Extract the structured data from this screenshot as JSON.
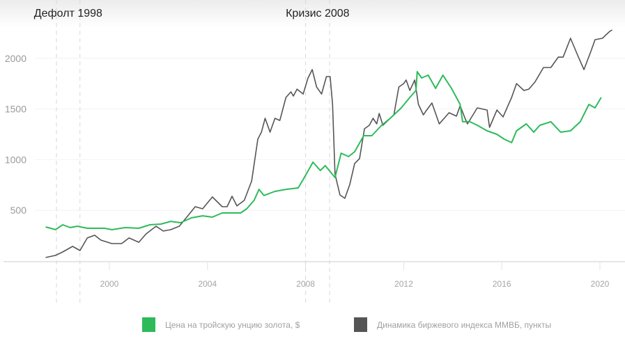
{
  "chart_data": {
    "type": "line",
    "xlim": [
      1997.3,
      2020.6
    ],
    "ylim": [
      0,
      2300
    ],
    "grid": true,
    "y_ticks": [
      500,
      1000,
      1500,
      2000
    ],
    "x_ticks": [
      2000,
      2004,
      2008,
      2012,
      2016,
      2020
    ],
    "legend_position": "bottom",
    "annotations": [
      {
        "label": "Дефолт 1998",
        "lines": [
          1997.84,
          1998.8
        ]
      },
      {
        "label": "Кризис 2008",
        "lines": [
          2008.0,
          2008.98
        ]
      }
    ],
    "series": [
      {
        "name": "Цена на тройскую унцию золота, $",
        "color": "#2dbb5a",
        "points": [
          [
            1997.4,
            336
          ],
          [
            1997.8,
            310
          ],
          [
            1998.1,
            357
          ],
          [
            1998.4,
            330
          ],
          [
            1998.7,
            343
          ],
          [
            1999.1,
            323
          ],
          [
            1999.8,
            323
          ],
          [
            2000.1,
            309
          ],
          [
            2000.65,
            330
          ],
          [
            2001.2,
            323
          ],
          [
            2001.65,
            357
          ],
          [
            2002.1,
            364
          ],
          [
            2002.5,
            391
          ],
          [
            2002.9,
            378
          ],
          [
            2003.35,
            426
          ],
          [
            2003.8,
            446
          ],
          [
            2004.2,
            433
          ],
          [
            2004.6,
            474
          ],
          [
            2005.35,
            474
          ],
          [
            2005.6,
            515
          ],
          [
            2005.9,
            598
          ],
          [
            2006.1,
            707
          ],
          [
            2006.3,
            646
          ],
          [
            2006.75,
            687
          ],
          [
            2007.2,
            707
          ],
          [
            2007.7,
            721
          ],
          [
            2007.95,
            824
          ],
          [
            2008.3,
            975
          ],
          [
            2008.6,
            893
          ],
          [
            2008.8,
            941
          ],
          [
            2009.2,
            824
          ],
          [
            2009.45,
            1064
          ],
          [
            2009.75,
            1030
          ],
          [
            2010.0,
            1078
          ],
          [
            2010.37,
            1236
          ],
          [
            2010.7,
            1236
          ],
          [
            2011.1,
            1339
          ],
          [
            2011.45,
            1408
          ],
          [
            2011.9,
            1511
          ],
          [
            2012.25,
            1614
          ],
          [
            2012.5,
            1683
          ],
          [
            2012.55,
            1868
          ],
          [
            2012.73,
            1806
          ],
          [
            2013.0,
            1834
          ],
          [
            2013.3,
            1703
          ],
          [
            2013.6,
            1834
          ],
          [
            2013.95,
            1703
          ],
          [
            2014.3,
            1545
          ],
          [
            2014.4,
            1374
          ],
          [
            2014.7,
            1374
          ],
          [
            2015.0,
            1339
          ],
          [
            2015.4,
            1284
          ],
          [
            2015.8,
            1250
          ],
          [
            2016.1,
            1202
          ],
          [
            2016.4,
            1168
          ],
          [
            2016.6,
            1284
          ],
          [
            2017.0,
            1353
          ],
          [
            2017.3,
            1271
          ],
          [
            2017.55,
            1339
          ],
          [
            2018.0,
            1374
          ],
          [
            2018.4,
            1271
          ],
          [
            2018.8,
            1284
          ],
          [
            2019.2,
            1374
          ],
          [
            2019.55,
            1545
          ],
          [
            2019.8,
            1511
          ],
          [
            2020.05,
            1614
          ]
        ]
      },
      {
        "name": "Динамика биржевого индекса ММВБ, пункты",
        "color": "#555555",
        "points": [
          [
            1997.4,
            34
          ],
          [
            1997.8,
            55
          ],
          [
            1998.1,
            89
          ],
          [
            1998.5,
            144
          ],
          [
            1998.8,
            103
          ],
          [
            1999.1,
            227
          ],
          [
            1999.4,
            254
          ],
          [
            1999.65,
            206
          ],
          [
            2000.1,
            172
          ],
          [
            2000.5,
            172
          ],
          [
            2000.8,
            227
          ],
          [
            2001.2,
            185
          ],
          [
            2001.5,
            268
          ],
          [
            2001.9,
            343
          ],
          [
            2002.2,
            295
          ],
          [
            2002.5,
            309
          ],
          [
            2002.85,
            343
          ],
          [
            2003.2,
            446
          ],
          [
            2003.5,
            536
          ],
          [
            2003.8,
            515
          ],
          [
            2004.2,
            632
          ],
          [
            2004.6,
            536
          ],
          [
            2004.8,
            536
          ],
          [
            2005.0,
            639
          ],
          [
            2005.2,
            543
          ],
          [
            2005.5,
            598
          ],
          [
            2005.8,
            790
          ],
          [
            2006.05,
            1202
          ],
          [
            2006.2,
            1271
          ],
          [
            2006.35,
            1408
          ],
          [
            2006.55,
            1271
          ],
          [
            2006.75,
            1408
          ],
          [
            2006.95,
            1387
          ],
          [
            2007.2,
            1614
          ],
          [
            2007.4,
            1669
          ],
          [
            2007.5,
            1628
          ],
          [
            2007.65,
            1696
          ],
          [
            2007.9,
            1648
          ],
          [
            2008.1,
            1806
          ],
          [
            2008.27,
            1889
          ],
          [
            2008.45,
            1717
          ],
          [
            2008.65,
            1648
          ],
          [
            2008.85,
            1820
          ],
          [
            2009.0,
            1820
          ],
          [
            2009.1,
            1545
          ],
          [
            2009.2,
            858
          ],
          [
            2009.4,
            652
          ],
          [
            2009.6,
            618
          ],
          [
            2009.8,
            755
          ],
          [
            2010.0,
            962
          ],
          [
            2010.2,
            1010
          ],
          [
            2010.4,
            1305
          ],
          [
            2010.6,
            1339
          ],
          [
            2010.75,
            1408
          ],
          [
            2010.9,
            1353
          ],
          [
            2011.0,
            1456
          ],
          [
            2011.15,
            1339
          ],
          [
            2011.6,
            1442
          ],
          [
            2011.8,
            1717
          ],
          [
            2012.0,
            1751
          ],
          [
            2012.1,
            1786
          ],
          [
            2012.25,
            1683
          ],
          [
            2012.45,
            1786
          ],
          [
            2012.6,
            1545
          ],
          [
            2012.8,
            1442
          ],
          [
            2012.9,
            1477
          ],
          [
            2013.15,
            1559
          ],
          [
            2013.45,
            1353
          ],
          [
            2013.85,
            1463
          ],
          [
            2014.15,
            1429
          ],
          [
            2014.3,
            1532
          ],
          [
            2014.5,
            1408
          ],
          [
            2014.6,
            1353
          ],
          [
            2015.0,
            1511
          ],
          [
            2015.4,
            1490
          ],
          [
            2015.5,
            1319
          ],
          [
            2015.8,
            1490
          ],
          [
            2016.05,
            1422
          ],
          [
            2016.25,
            1532
          ],
          [
            2016.4,
            1614
          ],
          [
            2016.6,
            1751
          ],
          [
            2016.9,
            1683
          ],
          [
            2017.1,
            1696
          ],
          [
            2017.35,
            1765
          ],
          [
            2017.7,
            1909
          ],
          [
            2018.0,
            1909
          ],
          [
            2018.3,
            2012
          ],
          [
            2018.5,
            2012
          ],
          [
            2018.8,
            2198
          ],
          [
            2019.1,
            2026
          ],
          [
            2019.35,
            1889
          ],
          [
            2019.65,
            2081
          ],
          [
            2019.8,
            2184
          ],
          [
            2020.1,
            2198
          ],
          [
            2020.4,
            2266
          ],
          [
            2020.5,
            2280
          ]
        ]
      }
    ]
  }
}
